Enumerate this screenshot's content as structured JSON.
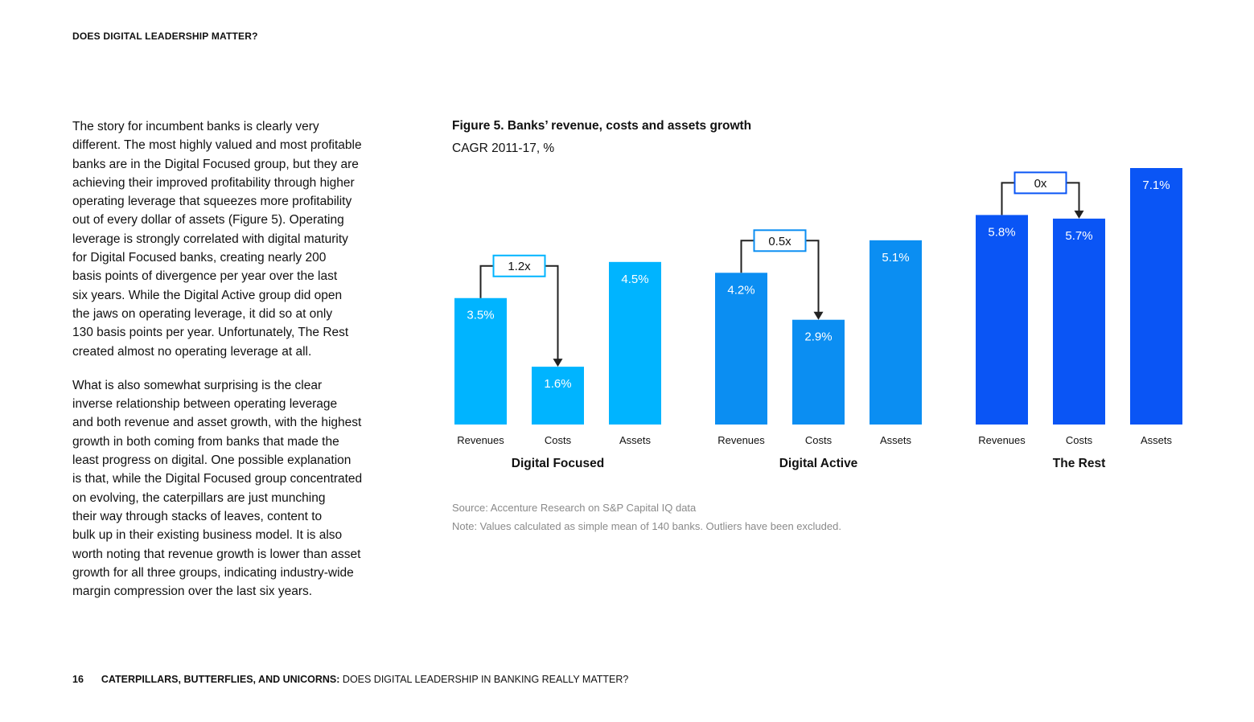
{
  "header": {
    "title": "DOES DIGITAL LEADERSHIP MATTER?"
  },
  "body": {
    "paragraph1": [
      "The story for incumbent banks is clearly very",
      "different. The most highly valued and most profitable",
      "banks are in the Digital Focused group, but they are",
      "achieving their improved profitability through higher",
      "operating leverage that squeezes more profitability",
      "out of every dollar of assets (Figure 5). Operating",
      "leverage is strongly correlated with digital maturity",
      "for Digital Focused banks, creating nearly 200",
      "basis points of divergence per year over the last",
      "six years. While the Digital Active group did open",
      "the jaws on operating leverage, it did so at only",
      "130 basis points per year. Unfortunately, The Rest",
      "created almost no operating leverage at all."
    ],
    "paragraph2": [
      "What is also somewhat surprising is the clear",
      "inverse relationship between operating leverage",
      "and both revenue and asset growth, with the highest",
      "growth in both coming from banks that made the",
      "least progress on digital. One possible explanation",
      "is that, while the Digital Focused group concentrated",
      "on evolving, the caterpillars are just munching",
      "their way through stacks of leaves, content to",
      "bulk up in their existing business model. It is also",
      "worth noting that revenue growth is lower than asset",
      "growth for all three groups, indicating industry-wide",
      "margin compression over the last six years."
    ]
  },
  "figure": {
    "title": "Figure 5. Banks’ revenue, costs and assets growth",
    "subtitle": "CAGR 2011-17, %",
    "source": "Source: Accenture Research on S&P Capital IQ data",
    "note": "Note: Values calculated as simple mean of 140 banks. Outliers have been excluded."
  },
  "chart_data": {
    "type": "bar",
    "title": "Figure 5. Banks’ revenue, costs and assets growth",
    "subtitle": "CAGR 2011-17, %",
    "categories": [
      "Revenues",
      "Costs",
      "Assets"
    ],
    "ylim": [
      0,
      7.1
    ],
    "groups": [
      {
        "name": "Digital Focused",
        "color": "#00b4ff",
        "values": [
          3.5,
          1.6,
          4.5
        ],
        "labels": [
          "3.5%",
          "1.6%",
          "4.5%"
        ],
        "leverage": "1.2x"
      },
      {
        "name": "Digital Active",
        "color": "#0b8ef2",
        "values": [
          4.2,
          2.9,
          5.1
        ],
        "labels": [
          "4.2%",
          "2.9%",
          "5.1%"
        ],
        "leverage": "0.5x"
      },
      {
        "name": "The Rest",
        "color": "#0a55f5",
        "values": [
          5.8,
          5.7,
          7.1
        ],
        "labels": [
          "5.8%",
          "5.7%",
          "7.1%"
        ],
        "leverage": "0x"
      }
    ]
  },
  "footer": {
    "page_number": "16",
    "series_title": "CATERPILLARS, BUTTERFLIES, AND UNICORNS:",
    "subtitle": " DOES DIGITAL LEADERSHIP IN BANKING REALLY MATTER?"
  }
}
